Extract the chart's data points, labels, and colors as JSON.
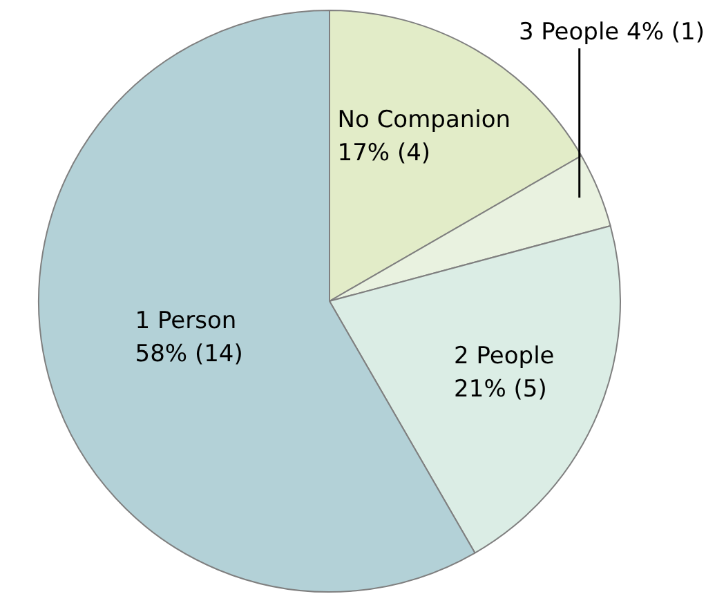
{
  "chart_data": {
    "type": "pie",
    "categories": [
      "No Companion",
      "3 People",
      "2 People",
      "1 Person"
    ],
    "values": [
      4,
      1,
      5,
      14
    ],
    "value_labels": [
      "17% (4)",
      "4% (1)",
      "21% (5)",
      "58% (14)"
    ],
    "colors": [
      "#e2ecc8",
      "#e9f2e0",
      "#dbede5",
      "#b3d1d7"
    ],
    "legend": false
  }
}
